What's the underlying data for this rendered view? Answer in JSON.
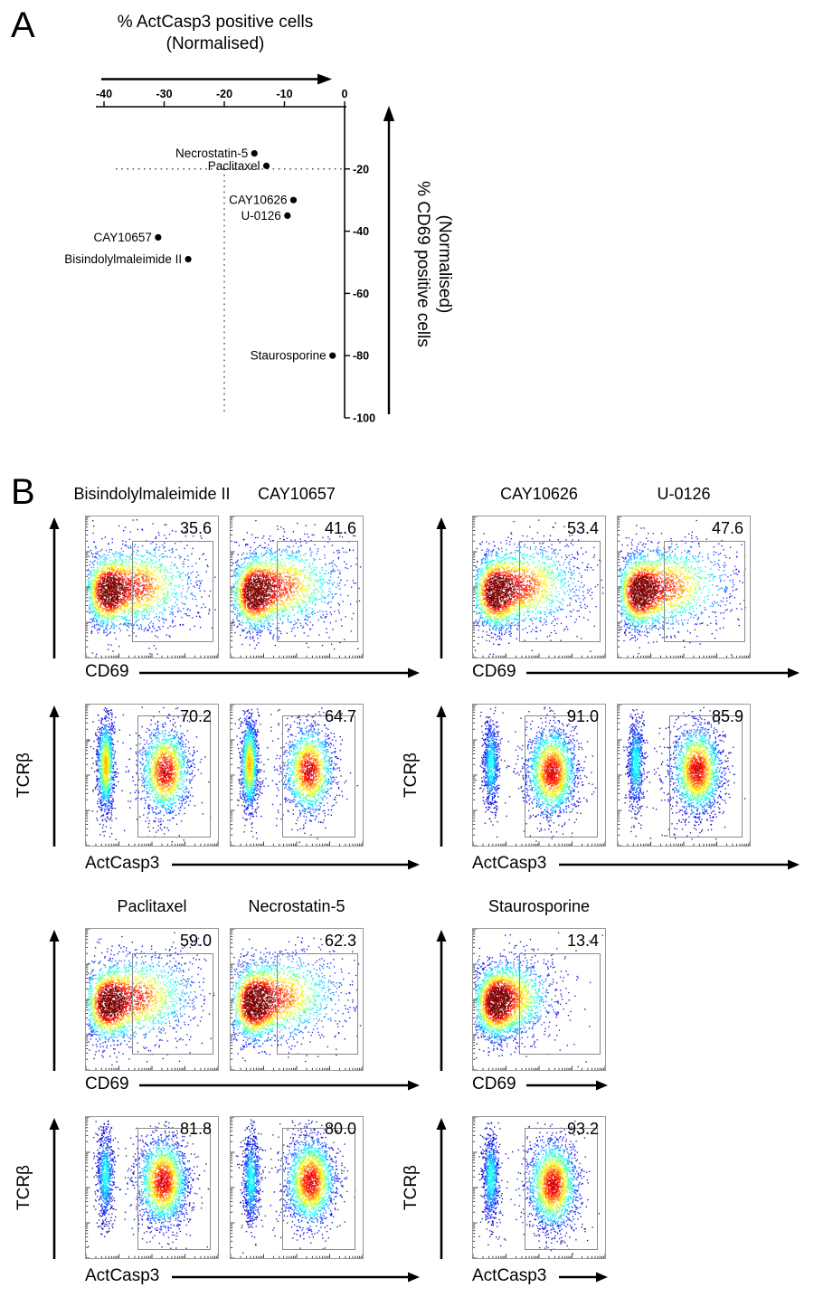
{
  "panels": {
    "a_label": "A",
    "b_label": "B"
  },
  "chart_data": [
    {
      "type": "scatter",
      "xlabel": "% ActCasp3 positive cells",
      "xlabel2": "(Normalised)",
      "ylabel": "% CD69 positive cells",
      "ylabel2": "(Normalised)",
      "xlim": [
        -40,
        0
      ],
      "ylim": [
        -100,
        0
      ],
      "x_ticks": [
        -40,
        -30,
        -20,
        -10,
        0
      ],
      "y_ticks": [
        -20,
        -40,
        -60,
        -80,
        -100
      ],
      "reference_lines": {
        "x": -20,
        "y": -20,
        "style": "dotted"
      },
      "points": [
        {
          "name": "Necrostatin-5",
          "x": -15,
          "y": -15
        },
        {
          "name": "Paclitaxel",
          "x": -13,
          "y": -19
        },
        {
          "name": "CAY10626",
          "x": -8.5,
          "y": -30
        },
        {
          "name": "U-0126",
          "x": -9.5,
          "y": -35
        },
        {
          "name": "CAY10657",
          "x": -31,
          "y": -42
        },
        {
          "name": "Bisindolylmaleimide II",
          "x": -26,
          "y": -49
        },
        {
          "name": "Staurosporine",
          "x": -2,
          "y": -80
        }
      ]
    },
    {
      "type": "flow_cytometry_panel",
      "ylabel": "TCRβ",
      "x_axes": [
        "CD69",
        "ActCasp3"
      ],
      "blocks": [
        {
          "groups": [
            {
              "drugs": [
                {
                  "name": "Bisindolylmaleimide II",
                  "cd69_pct": "35.6",
                  "actcasp3_pct": "70.2"
                },
                {
                  "name": "CAY10657",
                  "cd69_pct": "41.6",
                  "actcasp3_pct": "64.7"
                }
              ]
            },
            {
              "drugs": [
                {
                  "name": "CAY10626",
                  "cd69_pct": "53.4",
                  "actcasp3_pct": "91.0"
                },
                {
                  "name": "U-0126",
                  "cd69_pct": "47.6",
                  "actcasp3_pct": "85.9"
                }
              ]
            }
          ]
        },
        {
          "groups": [
            {
              "drugs": [
                {
                  "name": "Paclitaxel",
                  "cd69_pct": "59.0",
                  "actcasp3_pct": "81.8"
                },
                {
                  "name": "Necrostatin-5",
                  "cd69_pct": "62.3",
                  "actcasp3_pct": "80.0"
                }
              ]
            },
            {
              "drugs": [
                {
                  "name": "Staurosporine",
                  "cd69_pct": "13.4",
                  "actcasp3_pct": "93.2"
                }
              ]
            }
          ]
        }
      ]
    }
  ]
}
